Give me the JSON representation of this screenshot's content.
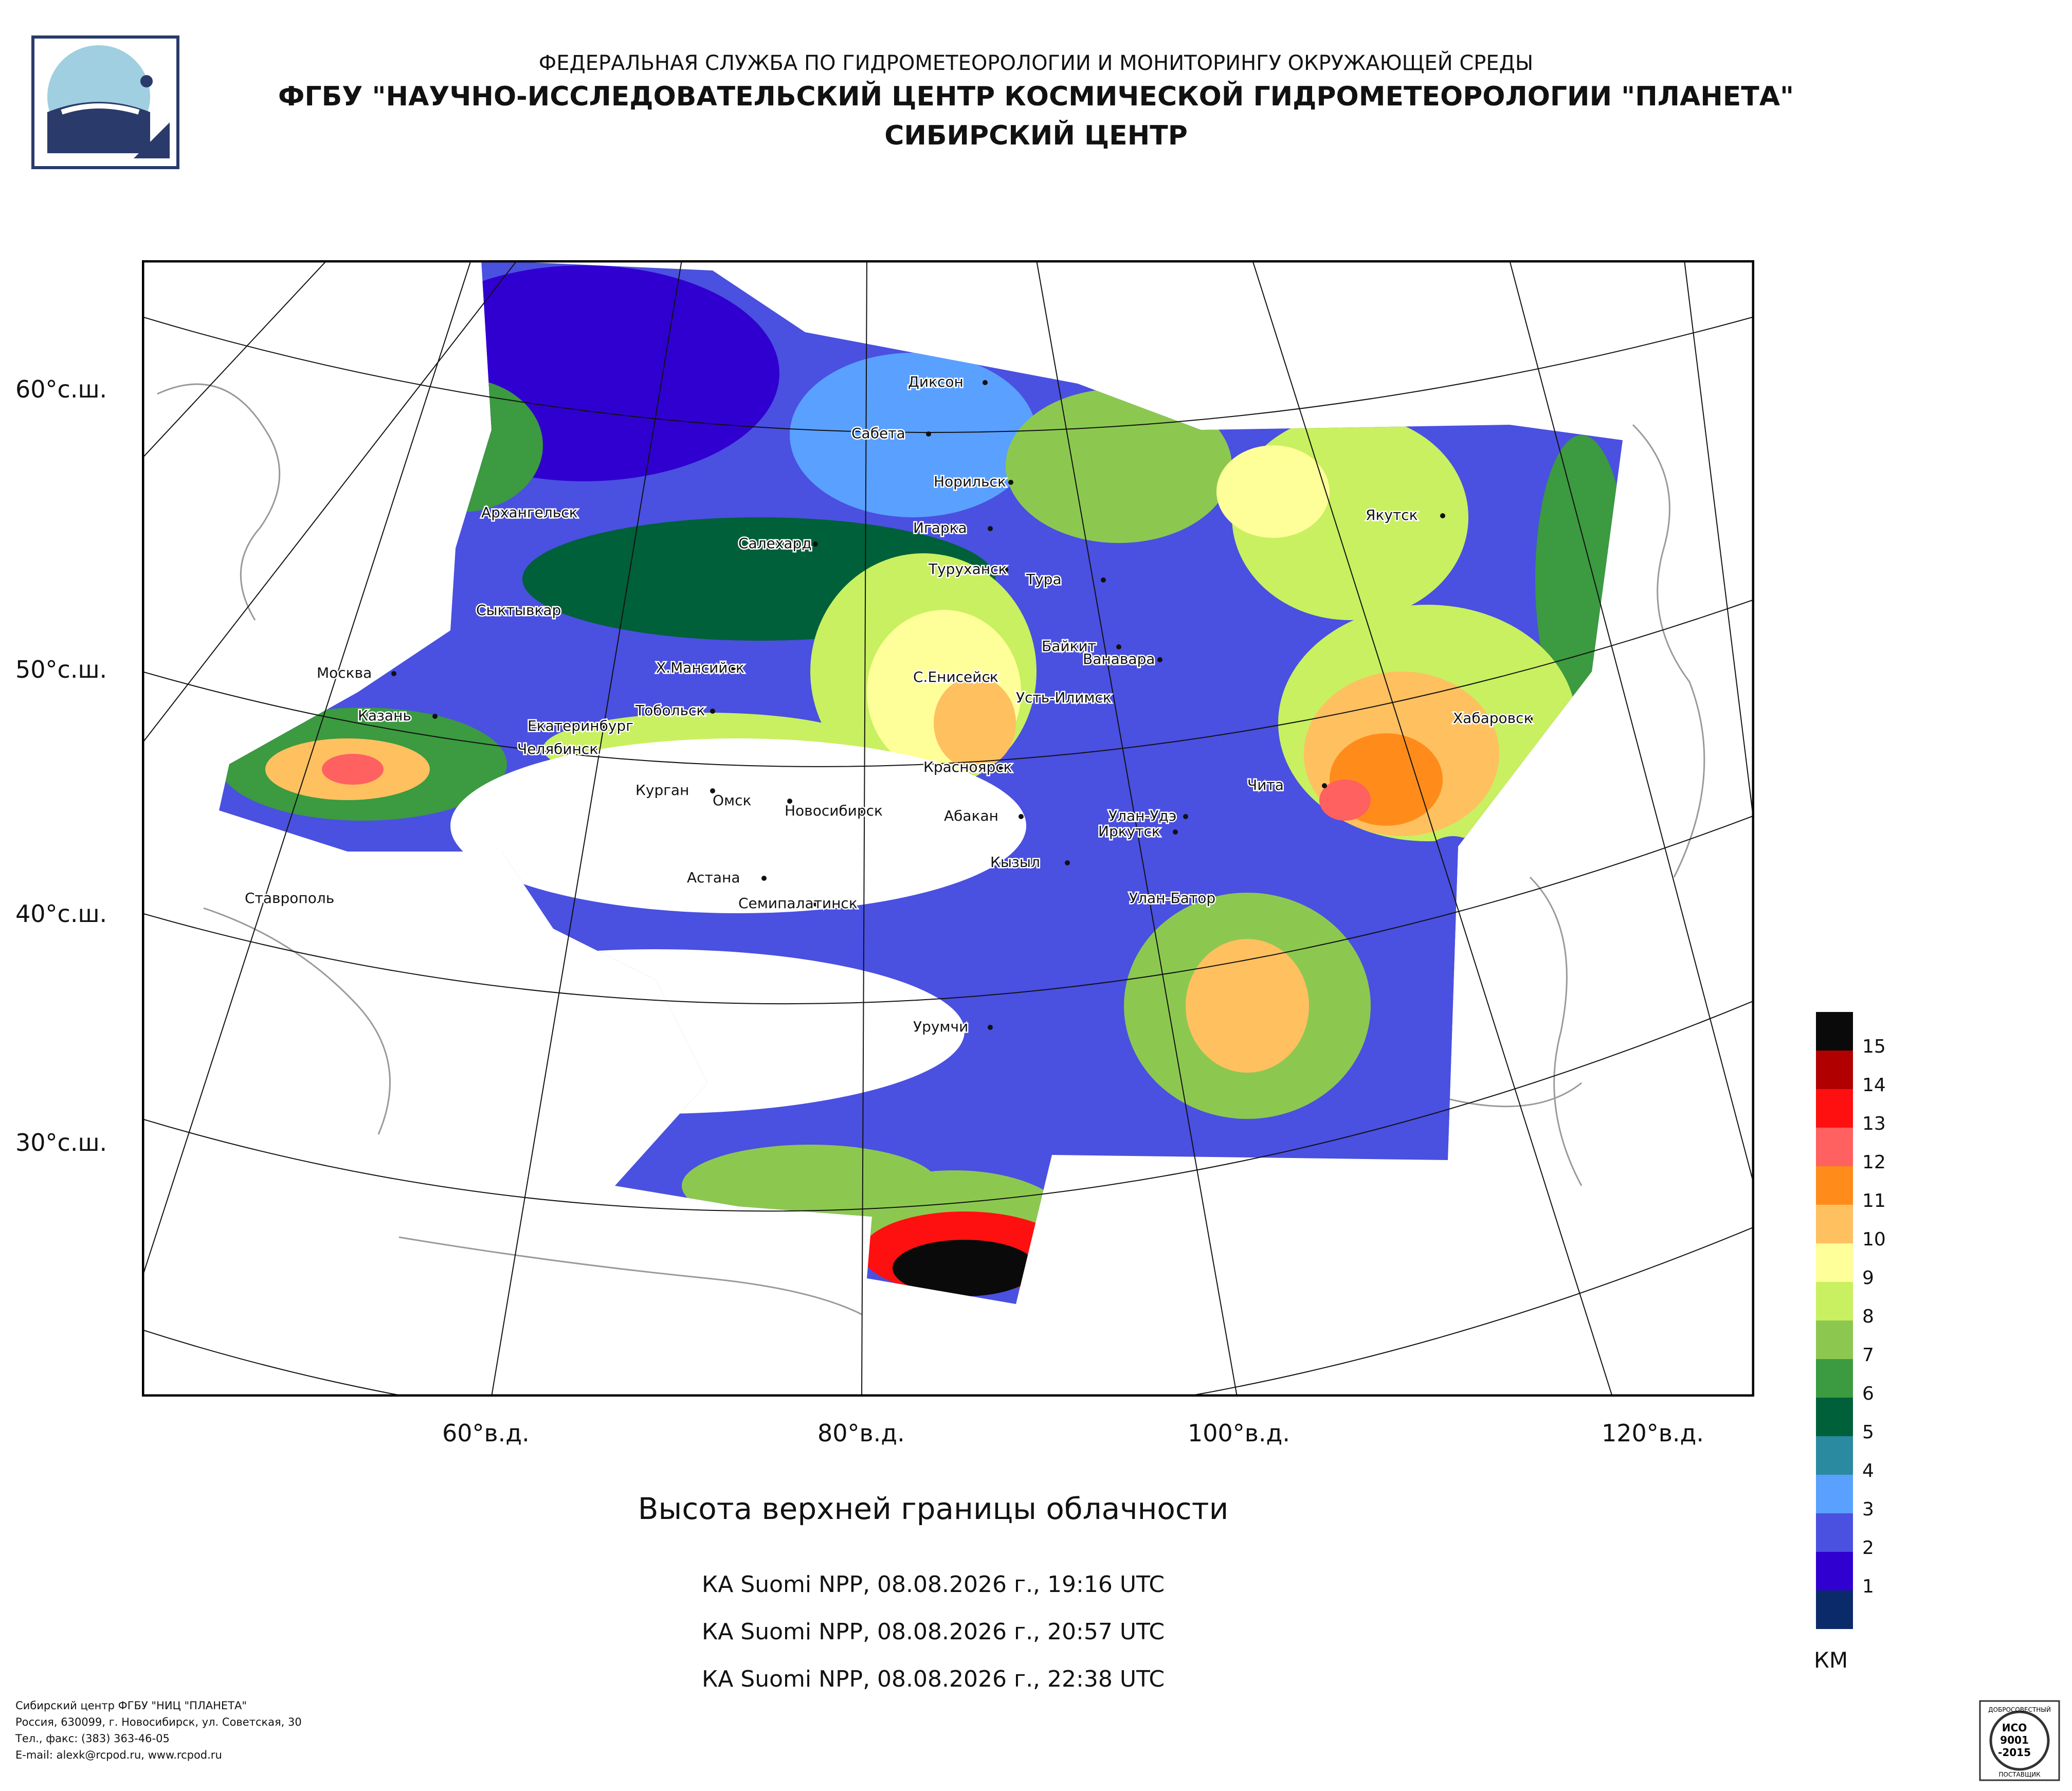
{
  "header": {
    "line1": "ФЕДЕРАЛЬНАЯ СЛУЖБА ПО ГИДРОМЕТЕОРОЛОГИИ И МОНИТОРИНГУ ОКРУЖАЮЩЕЙ СРЕДЫ",
    "line2": "ФГБУ \"НАУЧНО-ИССЛЕДОВАТЕЛЬСКИЙ ЦЕНТР КОСМИЧЕСКОЙ ГИДРОМЕТЕОРОЛОГИИ \"ПЛАНЕТА\"",
    "line3": "СИБИРСКИЙ ЦЕНТР"
  },
  "map": {
    "lat_labels": [
      "60°с.ш.",
      "50°с.ш.",
      "40°с.ш.",
      "30°с.ш."
    ],
    "lon_labels": [
      "60°в.д.",
      "80°в.д.",
      "100°в.д.",
      "120°в.д."
    ],
    "cities": [
      {
        "name": "Диксон"
      },
      {
        "name": "Сабета"
      },
      {
        "name": "Норильск"
      },
      {
        "name": "Игарка"
      },
      {
        "name": "Архангельск"
      },
      {
        "name": "Салехард"
      },
      {
        "name": "Туруханск"
      },
      {
        "name": "Якутск"
      },
      {
        "name": "Тура"
      },
      {
        "name": "Сыктывкар"
      },
      {
        "name": "Байкит"
      },
      {
        "name": "Ванавара"
      },
      {
        "name": "Москва"
      },
      {
        "name": "Х.Мансийск"
      },
      {
        "name": "С.Енисейск"
      },
      {
        "name": "Усть-Илимск"
      },
      {
        "name": "Хабаровск"
      },
      {
        "name": "Казань"
      },
      {
        "name": "Тобольск"
      },
      {
        "name": "Екатеринбург"
      },
      {
        "name": "Челябинск"
      },
      {
        "name": "Красноярск"
      },
      {
        "name": "Чита"
      },
      {
        "name": "Курган"
      },
      {
        "name": "Омск"
      },
      {
        "name": "Новосибирск"
      },
      {
        "name": "Абакан"
      },
      {
        "name": "Улан-Удэ"
      },
      {
        "name": "Иркутск"
      },
      {
        "name": "Кызыл"
      },
      {
        "name": "Астана"
      },
      {
        "name": "Ставрополь"
      },
      {
        "name": "Семипалатинск"
      },
      {
        "name": "Улан-Батор"
      },
      {
        "name": "Урумчи"
      }
    ]
  },
  "title": "Высота верхней границы облачности",
  "passes": [
    "КА Suomi NPP, 08.08.2026 г., 19:16 UTC",
    "КА Suomi NPP, 08.08.2026 г., 20:57 UTC",
    "КА Suomi NPP, 08.08.2026 г., 22:38 UTC"
  ],
  "legend": {
    "unit": "КМ",
    "levels": [
      {
        "label": "15",
        "color": "#0a0a0a"
      },
      {
        "label": "14",
        "color": "#b00000"
      },
      {
        "label": "13",
        "color": "#ff1010"
      },
      {
        "label": "12",
        "color": "#ff6060"
      },
      {
        "label": "11",
        "color": "#ff8c1a"
      },
      {
        "label": "10",
        "color": "#ffc060"
      },
      {
        "label": "9",
        "color": "#ffff99"
      },
      {
        "label": "8",
        "color": "#c8f060"
      },
      {
        "label": "7",
        "color": "#8cc850"
      },
      {
        "label": "6",
        "color": "#3c9a40"
      },
      {
        "label": "5",
        "color": "#00603a"
      },
      {
        "label": "4",
        "color": "#2a8aa0"
      },
      {
        "label": "3",
        "color": "#5aa0ff"
      },
      {
        "label": "2",
        "color": "#4a50e0"
      },
      {
        "label": "1",
        "color": "#3000d0"
      },
      {
        "label": "",
        "color": "#0a2a6a"
      }
    ]
  },
  "footer": {
    "org": "Сибирский центр ФГБУ \"НИЦ \"ПЛАНЕТА\"",
    "address": "Россия, 630099, г. Новосибирск, ул. Советская, 30",
    "phone": "Тел., факс: (383) 363-46-05",
    "email": "E-mail: alexk@rcpod.ru, www.rcpod.ru"
  },
  "cert": {
    "top": "ДОБРОСОВЕСТНЫЙ",
    "l1": "ИСО",
    "l2": "9001",
    "l3": "-2015",
    "bottom": "ПОСТАВЩИК"
  }
}
